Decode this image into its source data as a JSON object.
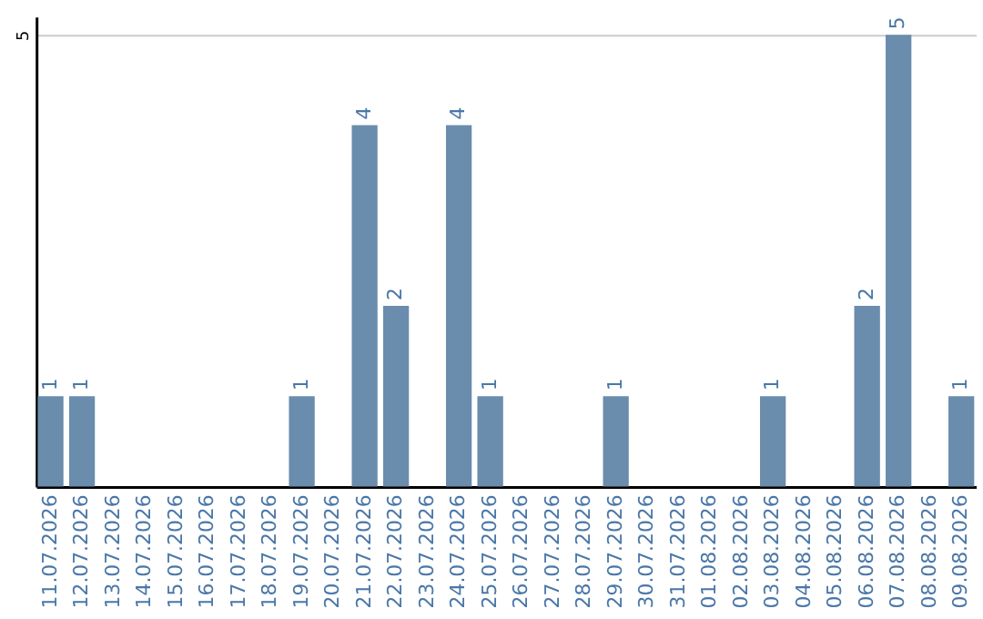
{
  "chart_data": {
    "type": "bar",
    "categories": [
      "11.07.2026",
      "12.07.2026",
      "13.07.2026",
      "14.07.2026",
      "15.07.2026",
      "16.07.2026",
      "17.07.2026",
      "18.07.2026",
      "19.07.2026",
      "20.07.2026",
      "21.07.2026",
      "22.07.2026",
      "23.07.2026",
      "24.07.2026",
      "25.07.2026",
      "26.07.2026",
      "27.07.2026",
      "28.07.2026",
      "29.07.2026",
      "30.07.2026",
      "31.07.2026",
      "01.08.2026",
      "02.08.2026",
      "03.08.2026",
      "04.08.2026",
      "05.08.2026",
      "06.08.2026",
      "07.08.2026",
      "08.08.2026",
      "09.08.2026"
    ],
    "values": [
      1,
      1,
      0,
      0,
      0,
      0,
      0,
      0,
      1,
      0,
      4,
      2,
      0,
      4,
      1,
      0,
      0,
      0,
      1,
      0,
      0,
      0,
      0,
      1,
      0,
      0,
      2,
      5,
      0,
      1
    ],
    "value_labels": [
      "1",
      "1",
      null,
      null,
      null,
      null,
      null,
      null,
      "1",
      null,
      "4",
      "2",
      null,
      "4",
      "1",
      null,
      null,
      null,
      "1",
      null,
      null,
      null,
      null,
      "1",
      null,
      null,
      "2",
      "5",
      null,
      "1"
    ],
    "color": "#6a8cad",
    "ylim": [
      0,
      5.2
    ],
    "yticks": [
      5
    ],
    "grid": "y"
  }
}
